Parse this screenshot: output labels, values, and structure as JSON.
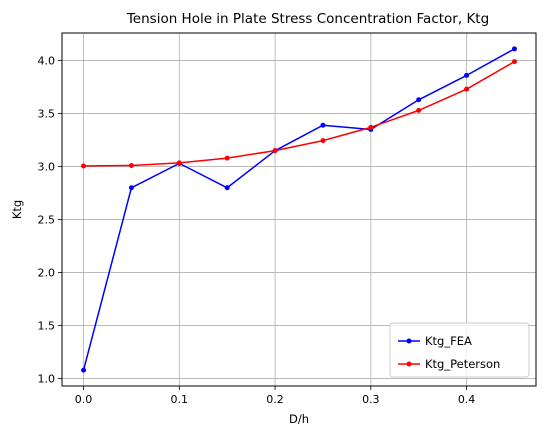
{
  "chart_data": {
    "type": "line",
    "title": "Tension Hole in Plate Stress Concentration Factor, Ktg",
    "xlabel": "D/h",
    "ylabel": "Ktg",
    "x": [
      0.0,
      0.05,
      0.1,
      0.15,
      0.2,
      0.25,
      0.3,
      0.35,
      0.4,
      0.45
    ],
    "series": [
      {
        "name": "Ktg_FEA",
        "color": "#0000ff",
        "values": [
          1.08,
          2.8,
          3.03,
          2.8,
          3.15,
          3.39,
          3.35,
          3.63,
          3.86,
          4.11
        ]
      },
      {
        "name": "Ktg_Peterson",
        "color": "#ff0000",
        "values": [
          3.005,
          3.01,
          3.035,
          3.08,
          3.15,
          3.245,
          3.37,
          3.53,
          3.73,
          3.99
        ]
      }
    ],
    "xlim": [
      -0.0225,
      0.4725
    ],
    "ylim": [
      0.93,
      4.26
    ],
    "xticks": [
      0.0,
      0.1,
      0.2,
      0.3,
      0.4
    ],
    "xtick_labels": [
      "0.0",
      "0.1",
      "0.2",
      "0.3",
      "0.4"
    ],
    "yticks": [
      1.0,
      1.5,
      2.0,
      2.5,
      3.0,
      3.5,
      4.0
    ],
    "ytick_labels": [
      "1.0",
      "1.5",
      "2.0",
      "2.5",
      "3.0",
      "3.5",
      "4.0"
    ],
    "grid": true,
    "legend_position": "lower right"
  }
}
